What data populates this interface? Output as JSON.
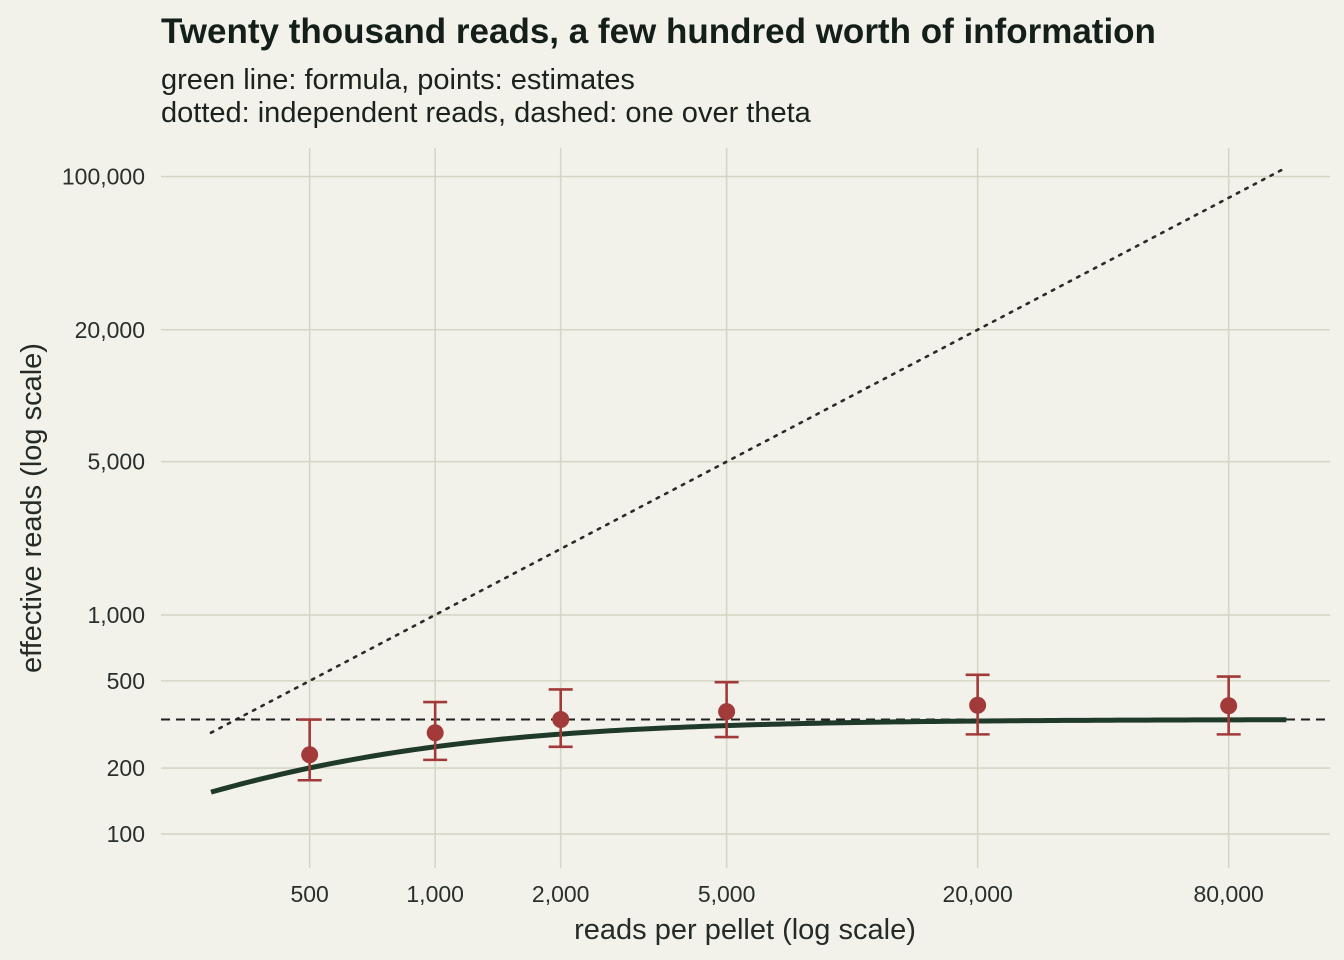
{
  "chart_data": {
    "type": "scatter",
    "title": "Twenty thousand reads, a few hundred worth of information",
    "subtitle": [
      "green line: formula, points: estimates",
      "dotted: independent reads, dashed: one over theta"
    ],
    "xlabel": "reads per pellet (log scale)",
    "ylabel": "effective reads (log scale)",
    "x_scale": "log",
    "y_scale": "log",
    "xlim": [
      220,
      140000
    ],
    "ylim": [
      70,
      135000
    ],
    "grid": true,
    "x_ticks": [
      500,
      1000,
      2000,
      5000,
      20000,
      80000
    ],
    "x_tick_labels": [
      "500",
      "1,000",
      "2,000",
      "5,000",
      "20,000",
      "80,000"
    ],
    "y_ticks": [
      100,
      200,
      500,
      1000,
      5000,
      20000,
      100000
    ],
    "y_tick_labels": [
      "100",
      "200",
      "500",
      "1,000",
      "5,000",
      "20,000",
      "100,000"
    ],
    "estimates": {
      "x": [
        500,
        1000,
        2000,
        5000,
        20000,
        80000
      ],
      "y": [
        230,
        290,
        333,
        362,
        387,
        385
      ],
      "lower": [
        176,
        218,
        250,
        277,
        285,
        285
      ],
      "upper": [
        333,
        400,
        457,
        493,
        533,
        523
      ],
      "color": "#a33a3a"
    },
    "formula": {
      "theta": 0.003,
      "x_range": [
        290,
        110000
      ],
      "color": "#1f3a28"
    },
    "independent_reads": {
      "x_range": [
        290,
        110000
      ],
      "style": "dotted",
      "color": "#2a2a2a"
    },
    "one_over_theta": {
      "y": 333,
      "style": "dashed",
      "color": "#1f1f1f"
    },
    "colors": {
      "background": "#f2f2eb",
      "grid": "#d6d6c6"
    }
  }
}
